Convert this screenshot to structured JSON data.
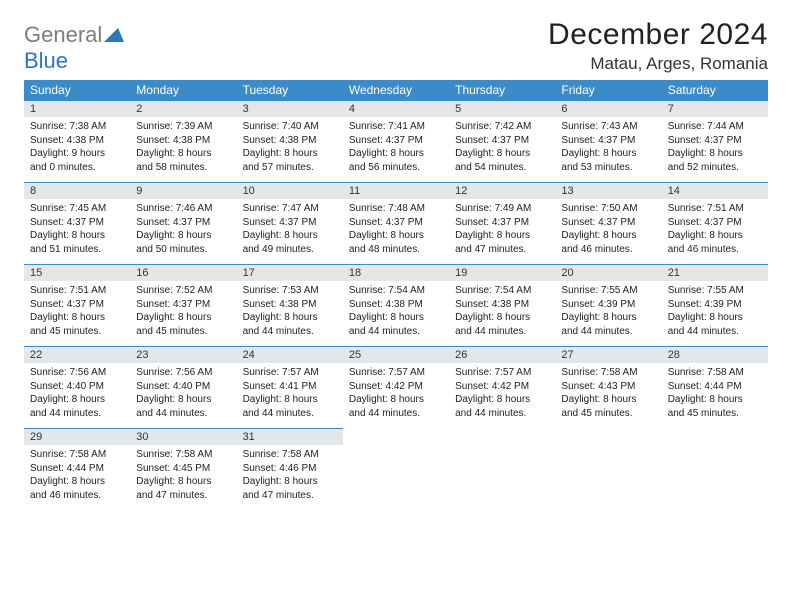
{
  "brand": {
    "word1": "General",
    "word2": "Blue"
  },
  "title": "December 2024",
  "location": "Matau, Arges, Romania",
  "colors": {
    "header_bg": "#3b8bc8",
    "header_text": "#ffffff",
    "daynum_bg": "#e4e7ea",
    "row_border": "#3b8bc8",
    "logo_gray": "#7d7d7d",
    "logo_blue": "#2f77bb"
  },
  "weekdays": [
    "Sunday",
    "Monday",
    "Tuesday",
    "Wednesday",
    "Thursday",
    "Friday",
    "Saturday"
  ],
  "weeks": [
    [
      {
        "n": "1",
        "sr": "Sunrise: 7:38 AM",
        "ss": "Sunset: 4:38 PM",
        "dl": "Daylight: 9 hours and 0 minutes."
      },
      {
        "n": "2",
        "sr": "Sunrise: 7:39 AM",
        "ss": "Sunset: 4:38 PM",
        "dl": "Daylight: 8 hours and 58 minutes."
      },
      {
        "n": "3",
        "sr": "Sunrise: 7:40 AM",
        "ss": "Sunset: 4:38 PM",
        "dl": "Daylight: 8 hours and 57 minutes."
      },
      {
        "n": "4",
        "sr": "Sunrise: 7:41 AM",
        "ss": "Sunset: 4:37 PM",
        "dl": "Daylight: 8 hours and 56 minutes."
      },
      {
        "n": "5",
        "sr": "Sunrise: 7:42 AM",
        "ss": "Sunset: 4:37 PM",
        "dl": "Daylight: 8 hours and 54 minutes."
      },
      {
        "n": "6",
        "sr": "Sunrise: 7:43 AM",
        "ss": "Sunset: 4:37 PM",
        "dl": "Daylight: 8 hours and 53 minutes."
      },
      {
        "n": "7",
        "sr": "Sunrise: 7:44 AM",
        "ss": "Sunset: 4:37 PM",
        "dl": "Daylight: 8 hours and 52 minutes."
      }
    ],
    [
      {
        "n": "8",
        "sr": "Sunrise: 7:45 AM",
        "ss": "Sunset: 4:37 PM",
        "dl": "Daylight: 8 hours and 51 minutes."
      },
      {
        "n": "9",
        "sr": "Sunrise: 7:46 AM",
        "ss": "Sunset: 4:37 PM",
        "dl": "Daylight: 8 hours and 50 minutes."
      },
      {
        "n": "10",
        "sr": "Sunrise: 7:47 AM",
        "ss": "Sunset: 4:37 PM",
        "dl": "Daylight: 8 hours and 49 minutes."
      },
      {
        "n": "11",
        "sr": "Sunrise: 7:48 AM",
        "ss": "Sunset: 4:37 PM",
        "dl": "Daylight: 8 hours and 48 minutes."
      },
      {
        "n": "12",
        "sr": "Sunrise: 7:49 AM",
        "ss": "Sunset: 4:37 PM",
        "dl": "Daylight: 8 hours and 47 minutes."
      },
      {
        "n": "13",
        "sr": "Sunrise: 7:50 AM",
        "ss": "Sunset: 4:37 PM",
        "dl": "Daylight: 8 hours and 46 minutes."
      },
      {
        "n": "14",
        "sr": "Sunrise: 7:51 AM",
        "ss": "Sunset: 4:37 PM",
        "dl": "Daylight: 8 hours and 46 minutes."
      }
    ],
    [
      {
        "n": "15",
        "sr": "Sunrise: 7:51 AM",
        "ss": "Sunset: 4:37 PM",
        "dl": "Daylight: 8 hours and 45 minutes."
      },
      {
        "n": "16",
        "sr": "Sunrise: 7:52 AM",
        "ss": "Sunset: 4:37 PM",
        "dl": "Daylight: 8 hours and 45 minutes."
      },
      {
        "n": "17",
        "sr": "Sunrise: 7:53 AM",
        "ss": "Sunset: 4:38 PM",
        "dl": "Daylight: 8 hours and 44 minutes."
      },
      {
        "n": "18",
        "sr": "Sunrise: 7:54 AM",
        "ss": "Sunset: 4:38 PM",
        "dl": "Daylight: 8 hours and 44 minutes."
      },
      {
        "n": "19",
        "sr": "Sunrise: 7:54 AM",
        "ss": "Sunset: 4:38 PM",
        "dl": "Daylight: 8 hours and 44 minutes."
      },
      {
        "n": "20",
        "sr": "Sunrise: 7:55 AM",
        "ss": "Sunset: 4:39 PM",
        "dl": "Daylight: 8 hours and 44 minutes."
      },
      {
        "n": "21",
        "sr": "Sunrise: 7:55 AM",
        "ss": "Sunset: 4:39 PM",
        "dl": "Daylight: 8 hours and 44 minutes."
      }
    ],
    [
      {
        "n": "22",
        "sr": "Sunrise: 7:56 AM",
        "ss": "Sunset: 4:40 PM",
        "dl": "Daylight: 8 hours and 44 minutes."
      },
      {
        "n": "23",
        "sr": "Sunrise: 7:56 AM",
        "ss": "Sunset: 4:40 PM",
        "dl": "Daylight: 8 hours and 44 minutes."
      },
      {
        "n": "24",
        "sr": "Sunrise: 7:57 AM",
        "ss": "Sunset: 4:41 PM",
        "dl": "Daylight: 8 hours and 44 minutes."
      },
      {
        "n": "25",
        "sr": "Sunrise: 7:57 AM",
        "ss": "Sunset: 4:42 PM",
        "dl": "Daylight: 8 hours and 44 minutes."
      },
      {
        "n": "26",
        "sr": "Sunrise: 7:57 AM",
        "ss": "Sunset: 4:42 PM",
        "dl": "Daylight: 8 hours and 44 minutes."
      },
      {
        "n": "27",
        "sr": "Sunrise: 7:58 AM",
        "ss": "Sunset: 4:43 PM",
        "dl": "Daylight: 8 hours and 45 minutes."
      },
      {
        "n": "28",
        "sr": "Sunrise: 7:58 AM",
        "ss": "Sunset: 4:44 PM",
        "dl": "Daylight: 8 hours and 45 minutes."
      }
    ],
    [
      {
        "n": "29",
        "sr": "Sunrise: 7:58 AM",
        "ss": "Sunset: 4:44 PM",
        "dl": "Daylight: 8 hours and 46 minutes."
      },
      {
        "n": "30",
        "sr": "Sunrise: 7:58 AM",
        "ss": "Sunset: 4:45 PM",
        "dl": "Daylight: 8 hours and 47 minutes."
      },
      {
        "n": "31",
        "sr": "Sunrise: 7:58 AM",
        "ss": "Sunset: 4:46 PM",
        "dl": "Daylight: 8 hours and 47 minutes."
      },
      {
        "empty": true
      },
      {
        "empty": true
      },
      {
        "empty": true
      },
      {
        "empty": true
      }
    ]
  ]
}
